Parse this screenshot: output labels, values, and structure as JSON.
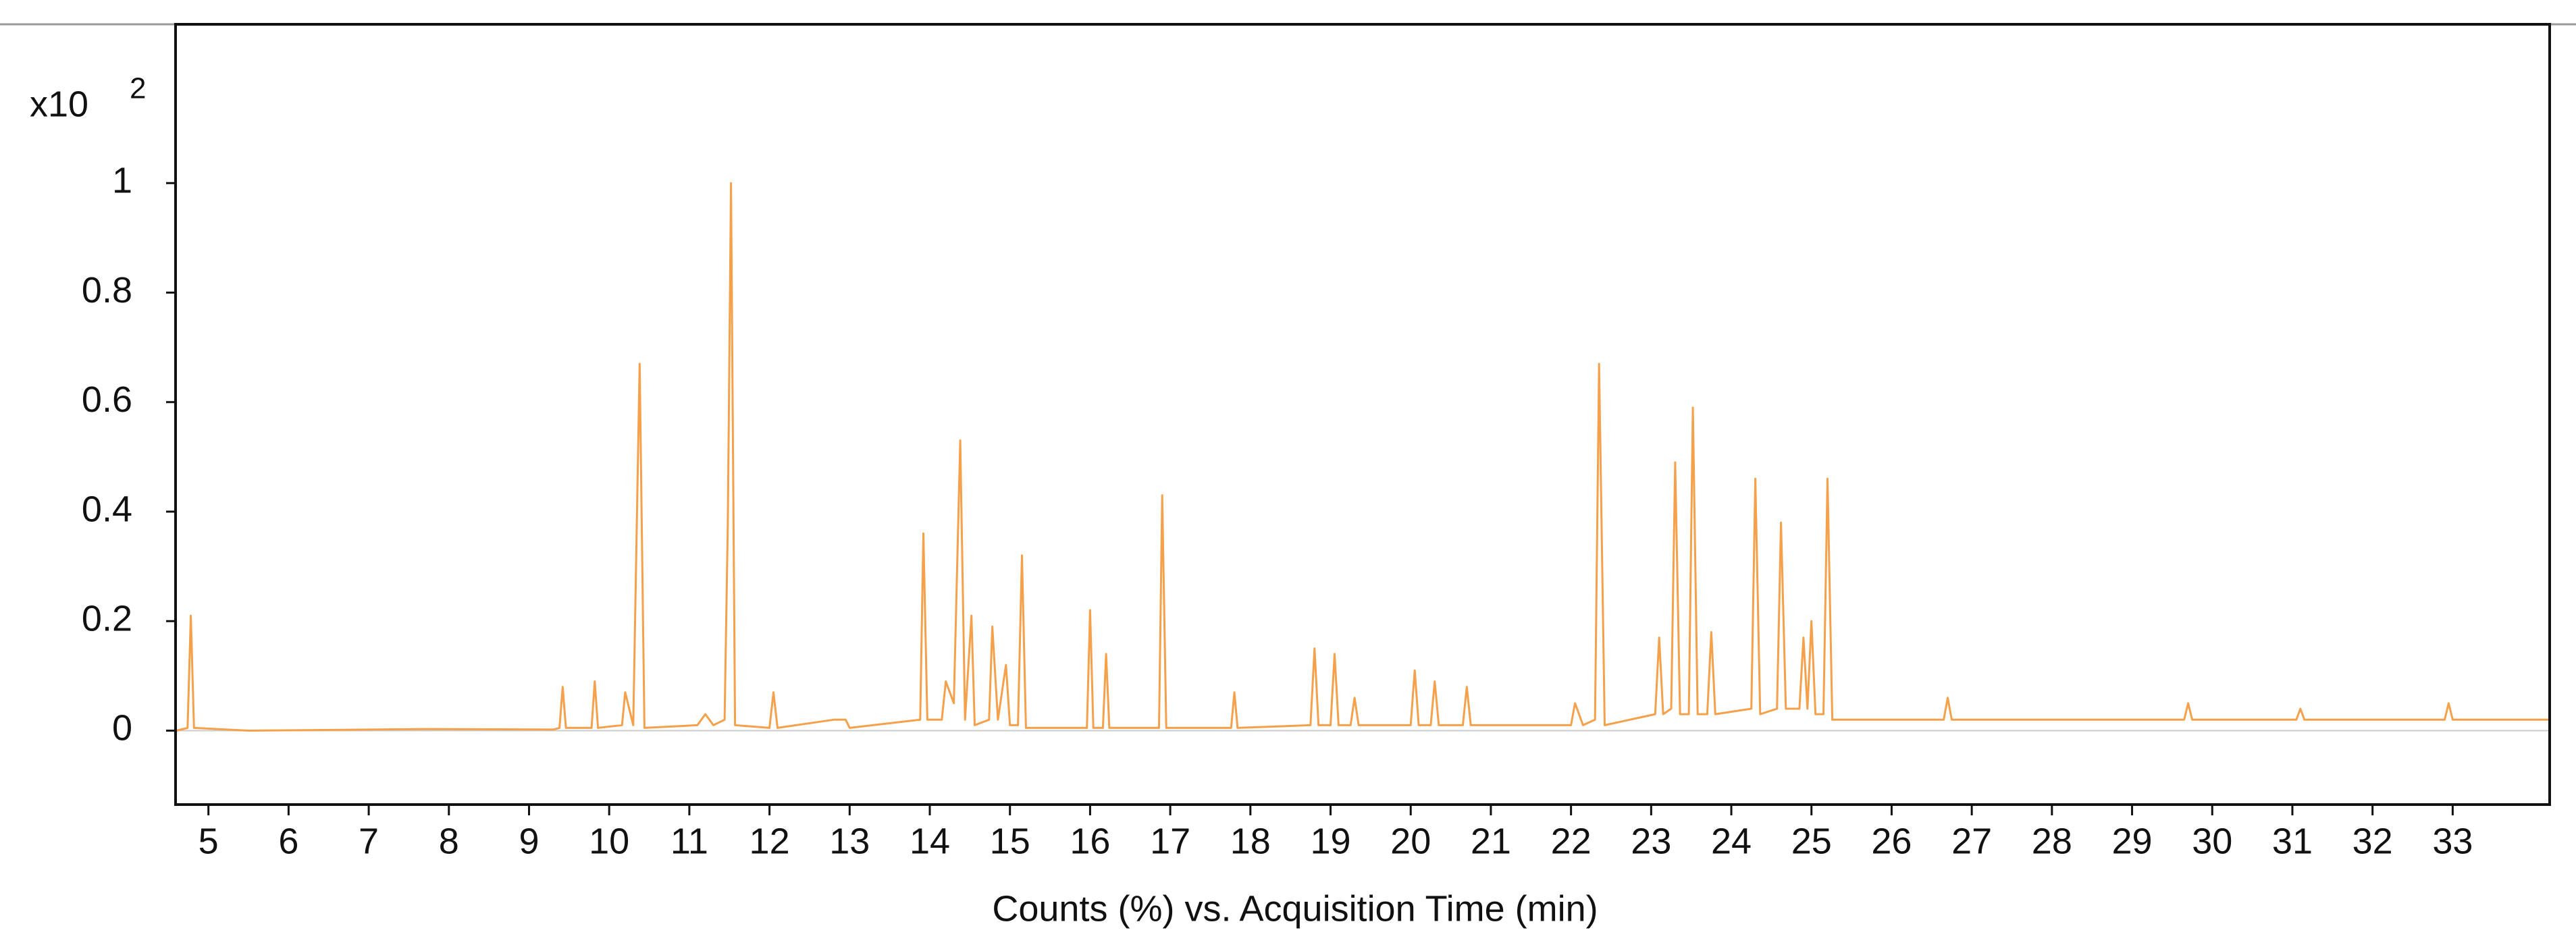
{
  "chart_data": {
    "type": "line",
    "xlabel": "Counts (%) vs. Acquisition Time (min)",
    "y_multiplier": "x10",
    "y_exponent": "2",
    "xlim": [
      4.59,
      34.21
    ],
    "ylim": [
      -0.135,
      1.29
    ],
    "xticks": [
      5,
      6,
      7,
      8,
      9,
      10,
      11,
      12,
      13,
      14,
      15,
      16,
      17,
      18,
      19,
      20,
      21,
      22,
      23,
      24,
      25,
      26,
      27,
      28,
      29,
      30,
      31,
      32,
      33
    ],
    "yticks": [
      0,
      0.2,
      0.4,
      0.6,
      0.8,
      1
    ],
    "grid": false,
    "series": [
      {
        "color": "#f5a04a",
        "x": [
          4.6,
          4.74,
          4.78,
          4.82,
          5.5,
          7.7,
          9.3,
          9.38,
          9.42,
          9.46,
          9.78,
          9.82,
          9.86,
          10.16,
          10.2,
          10.3,
          10.38,
          10.44,
          11.1,
          11.2,
          11.3,
          11.44,
          11.48,
          11.52,
          11.57,
          12.0,
          12.05,
          12.1,
          12.8,
          12.95,
          13.0,
          13.88,
          13.92,
          13.97,
          14.15,
          14.2,
          14.3,
          14.38,
          14.44,
          14.52,
          14.56,
          14.74,
          14.78,
          14.85,
          14.95,
          15.0,
          15.1,
          15.15,
          15.2,
          15.96,
          16.0,
          16.04,
          16.16,
          16.2,
          16.24,
          16.86,
          16.9,
          16.95,
          17.76,
          17.8,
          17.84,
          18.75,
          18.8,
          18.85,
          19.0,
          19.05,
          19.1,
          19.25,
          19.3,
          19.35,
          20.0,
          20.05,
          20.1,
          20.25,
          20.3,
          20.35,
          20.65,
          20.7,
          20.75,
          22.0,
          22.05,
          22.15,
          22.3,
          22.35,
          22.42,
          23.05,
          23.1,
          23.15,
          23.25,
          23.3,
          23.36,
          23.47,
          23.52,
          23.58,
          23.7,
          23.75,
          23.8,
          24.25,
          24.3,
          24.36,
          24.57,
          24.62,
          24.68,
          24.85,
          24.9,
          24.95,
          25.0,
          25.05,
          25.15,
          25.2,
          25.26,
          26.65,
          26.7,
          26.75,
          29.65,
          29.7,
          29.75,
          31.05,
          31.1,
          31.15,
          32.9,
          32.95,
          33.0,
          34.2
        ],
        "values": [
          0,
          0.005,
          0.21,
          0.005,
          0,
          0.003,
          0.002,
          0.005,
          0.08,
          0.005,
          0.005,
          0.09,
          0.005,
          0.01,
          0.07,
          0.01,
          0.67,
          0.005,
          0.01,
          0.03,
          0.01,
          0.02,
          0.38,
          1.0,
          0.01,
          0.005,
          0.07,
          0.005,
          0.02,
          0.02,
          0.005,
          0.02,
          0.36,
          0.02,
          0.02,
          0.09,
          0.05,
          0.53,
          0.02,
          0.21,
          0.01,
          0.02,
          0.19,
          0.02,
          0.12,
          0.01,
          0.01,
          0.32,
          0.005,
          0.005,
          0.22,
          0.005,
          0.005,
          0.14,
          0.005,
          0.005,
          0.43,
          0.005,
          0.005,
          0.07,
          0.005,
          0.01,
          0.15,
          0.01,
          0.01,
          0.14,
          0.01,
          0.01,
          0.06,
          0.01,
          0.01,
          0.11,
          0.01,
          0.01,
          0.09,
          0.01,
          0.01,
          0.08,
          0.01,
          0.01,
          0.05,
          0.01,
          0.02,
          0.67,
          0.01,
          0.03,
          0.17,
          0.03,
          0.04,
          0.49,
          0.03,
          0.03,
          0.59,
          0.03,
          0.03,
          0.18,
          0.03,
          0.04,
          0.46,
          0.03,
          0.04,
          0.38,
          0.04,
          0.04,
          0.17,
          0.04,
          0.2,
          0.03,
          0.03,
          0.46,
          0.02,
          0.02,
          0.06,
          0.02,
          0.02,
          0.05,
          0.02,
          0.02,
          0.04,
          0.02,
          0.02,
          0.05,
          0.02,
          0.02
        ]
      }
    ]
  }
}
